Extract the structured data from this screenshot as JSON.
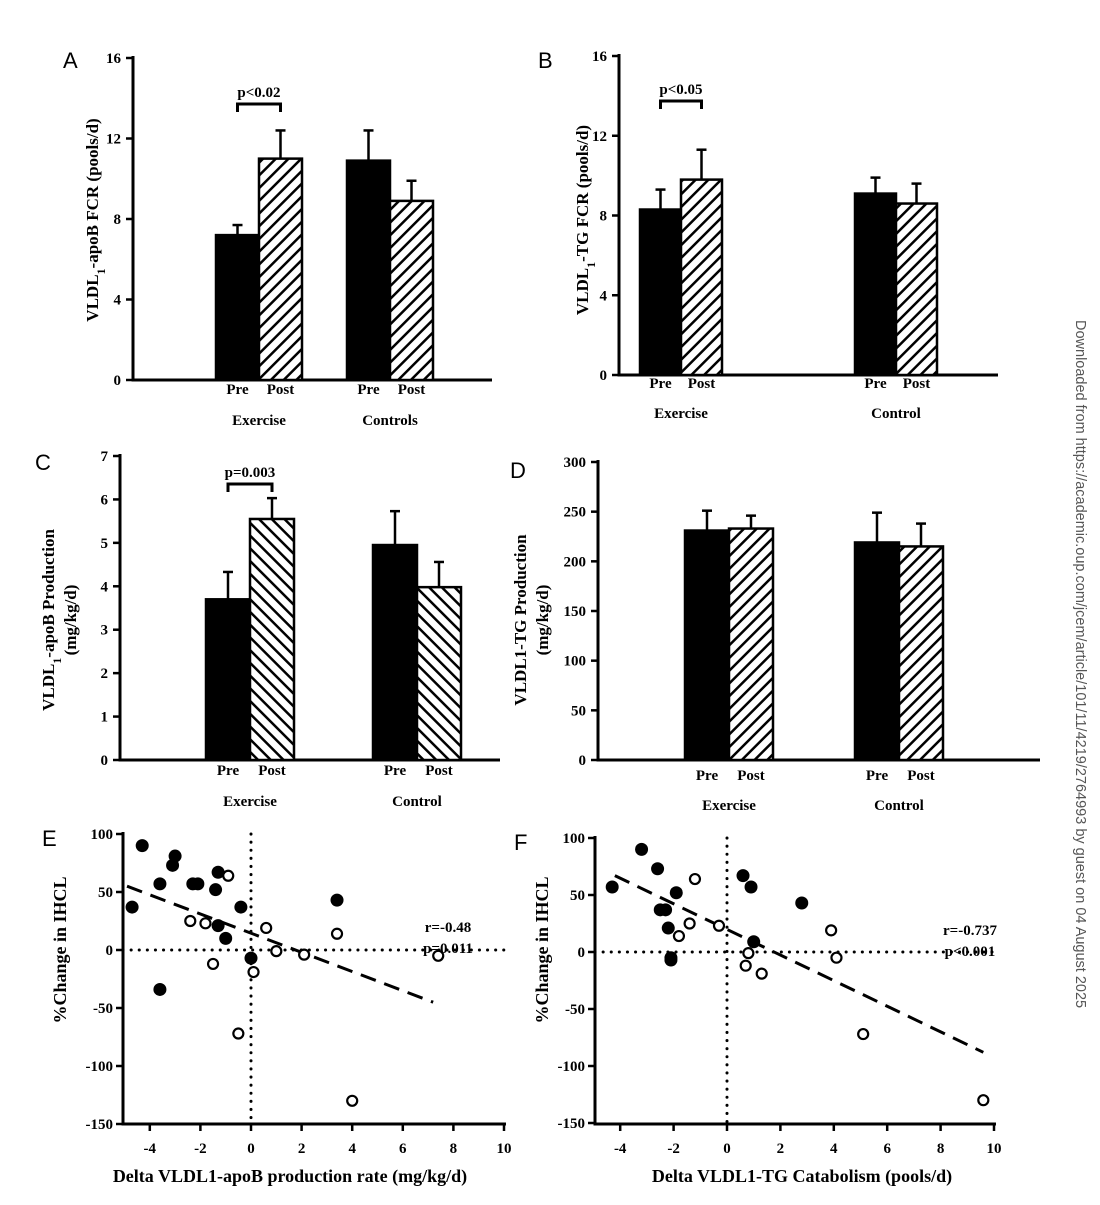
{
  "watermark": "Downloaded from https://academic.oup.com/jcem/article/101/11/4219/2764993 by guest on 04 August 2025",
  "chart_data": [
    {
      "panel": "A",
      "type": "bar",
      "ylabel_main": "VLDL",
      "ylabel_sub": "1",
      "ylabel_rest": "-apoB FCR (pools/d)",
      "ylabel_line2": "",
      "ylim": [
        0,
        16
      ],
      "yticks": [
        0,
        4,
        8,
        12,
        16
      ],
      "groups": [
        "Exercise",
        "Controls"
      ],
      "bar_labels": [
        "Pre",
        "Post"
      ],
      "hatch": "forward",
      "values": [
        [
          7.2,
          11.0
        ],
        [
          10.9,
          8.9
        ]
      ],
      "errors": [
        [
          0.5,
          1.4
        ],
        [
          1.5,
          1.0
        ]
      ],
      "annotation": {
        "text": "p<0.02",
        "group": 0
      }
    },
    {
      "panel": "B",
      "type": "bar",
      "ylabel_main": "VLDL",
      "ylabel_sub": "1",
      "ylabel_rest": "-TG FCR (pools/d)",
      "ylabel_line2": "",
      "ylim": [
        0,
        16
      ],
      "yticks": [
        0,
        4,
        8,
        12,
        16
      ],
      "groups": [
        "Exercise",
        "Control"
      ],
      "bar_labels": [
        "Pre",
        "Post"
      ],
      "hatch": "forward",
      "values": [
        [
          8.3,
          9.8
        ],
        [
          9.1,
          8.6
        ]
      ],
      "errors": [
        [
          1.0,
          1.5
        ],
        [
          0.8,
          1.0
        ]
      ],
      "annotation": {
        "text": "p<0.05",
        "group": 0
      }
    },
    {
      "panel": "C",
      "type": "bar",
      "ylabel_main": "VLDL",
      "ylabel_sub": "1",
      "ylabel_rest": "-apoB Production",
      "ylabel_line2": "(mg/kg/d)",
      "ylim": [
        0,
        7
      ],
      "yticks": [
        0,
        1,
        2,
        3,
        4,
        5,
        6,
        7
      ],
      "groups": [
        "Exercise",
        "Control"
      ],
      "bar_labels": [
        "Pre",
        "Post"
      ],
      "hatch": "backward",
      "values": [
        [
          3.7,
          5.55
        ],
        [
          4.95,
          3.98
        ]
      ],
      "errors": [
        [
          0.63,
          0.48
        ],
        [
          0.78,
          0.58
        ]
      ],
      "annotation": {
        "text": "p=0.003",
        "group": 0
      }
    },
    {
      "panel": "D",
      "type": "bar",
      "ylabel_main": "VLDL1-TG Production",
      "ylabel_sub": "",
      "ylabel_rest": "",
      "ylabel_line2": "(mg/kg/d)",
      "ylim": [
        0,
        300
      ],
      "yticks": [
        0,
        50,
        100,
        150,
        200,
        250,
        300
      ],
      "groups": [
        "Exercise",
        "Control"
      ],
      "bar_labels": [
        "Pre",
        "Post"
      ],
      "hatch": "forward",
      "values": [
        [
          231,
          233
        ],
        [
          219,
          215
        ]
      ],
      "errors": [
        [
          20,
          13
        ],
        [
          30,
          23
        ]
      ],
      "annotation": null
    },
    {
      "panel": "E",
      "type": "scatter",
      "xlabel": "Delta VLDL1-apoB production rate (mg/kg/d)",
      "ylabel": "%Change in IHCL",
      "xlim": [
        -5,
        10
      ],
      "ylim": [
        -150,
        100
      ],
      "xticks": [
        -4,
        -2,
        0,
        2,
        4,
        6,
        8,
        10
      ],
      "yticks": [
        -150,
        -100,
        -50,
        0,
        50,
        100
      ],
      "stats": [
        "r=-0.48",
        "p=0.011"
      ],
      "fit_line": {
        "x": [
          -4.9,
          7.2
        ],
        "y": [
          55,
          -45
        ]
      },
      "series": [
        {
          "name": "filled",
          "fill": "#000000",
          "points": [
            [
              -4.3,
              90
            ],
            [
              -3.0,
              81
            ],
            [
              -3.1,
              73
            ],
            [
              -3.6,
              57
            ],
            [
              -2.3,
              57
            ],
            [
              -2.1,
              57
            ],
            [
              -1.3,
              67
            ],
            [
              -1.4,
              52
            ],
            [
              -4.7,
              37
            ],
            [
              -0.4,
              37
            ],
            [
              -1.3,
              21
            ],
            [
              -1.0,
              10
            ],
            [
              0.0,
              -7
            ],
            [
              -3.6,
              -34
            ],
            [
              3.4,
              43
            ]
          ]
        },
        {
          "name": "open",
          "fill": "#ffffff",
          "points": [
            [
              -0.9,
              64
            ],
            [
              -2.4,
              25
            ],
            [
              -1.8,
              23
            ],
            [
              0.6,
              19
            ],
            [
              1.0,
              -1
            ],
            [
              2.1,
              -4
            ],
            [
              3.4,
              14
            ],
            [
              7.4,
              -5
            ],
            [
              -1.5,
              -12
            ],
            [
              0.1,
              -19
            ],
            [
              -0.5,
              -72
            ],
            [
              4.0,
              -130
            ]
          ]
        }
      ]
    },
    {
      "panel": "F",
      "type": "scatter",
      "xlabel": "Delta VLDL1-TG Catabolism (pools/d)",
      "ylabel": "%Change in IHCL",
      "xlim": [
        -5,
        10
      ],
      "ylim": [
        -150,
        100
      ],
      "xticks": [
        -4,
        -2,
        0,
        2,
        4,
        6,
        8,
        10
      ],
      "yticks": [
        -150,
        -100,
        -50,
        0,
        50,
        100
      ],
      "stats": [
        "r=-0.737",
        "p<0.001"
      ],
      "fit_line": {
        "x": [
          -4.2,
          9.6
        ],
        "y": [
          67,
          -88
        ]
      },
      "series": [
        {
          "name": "filled",
          "fill": "#000000",
          "points": [
            [
              -3.2,
              90
            ],
            [
              -2.6,
              73
            ],
            [
              -4.3,
              57
            ],
            [
              -1.9,
              52
            ],
            [
              -2.5,
              37
            ],
            [
              -2.3,
              37
            ],
            [
              -2.2,
              21
            ],
            [
              -2.1,
              -5
            ],
            [
              -2.1,
              -7
            ],
            [
              0.6,
              67
            ],
            [
              0.9,
              57
            ],
            [
              2.8,
              43
            ],
            [
              1.0,
              9
            ]
          ]
        },
        {
          "name": "open",
          "fill": "#ffffff",
          "points": [
            [
              -1.2,
              64
            ],
            [
              -1.4,
              25
            ],
            [
              -1.8,
              14
            ],
            [
              -0.3,
              23
            ],
            [
              0.8,
              -1
            ],
            [
              0.7,
              -12
            ],
            [
              1.3,
              -19
            ],
            [
              3.9,
              19
            ],
            [
              4.1,
              -5
            ],
            [
              5.1,
              -72
            ],
            [
              9.6,
              -130
            ]
          ]
        }
      ]
    }
  ]
}
